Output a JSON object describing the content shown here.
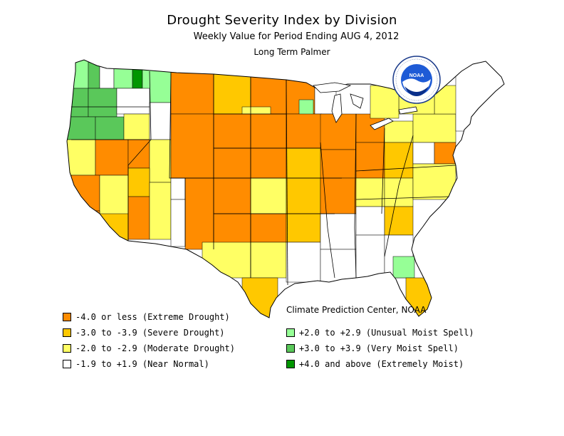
{
  "title": "Drought Severity Index by Division",
  "subtitle": "Weekly Value for Period Ending AUG  4, 2012",
  "subtitle2": "Long Term Palmer",
  "credit": "Climate Prediction Center, NOAA",
  "logo": {
    "name": "NOAA",
    "ring_text_top": "NATIONAL OCEANIC AND ATMOSPHERIC ADMINISTRATION",
    "ring_text_bottom": "U.S. DEPARTMENT OF COMMERCE"
  },
  "colors": {
    "extreme_drought": "#ff8c00",
    "severe_drought": "#ffc800",
    "moderate_drought": "#ffff64",
    "near_normal": "#ffffff",
    "unusual_moist": "#96ff96",
    "very_moist": "#5ac85a",
    "extremely_moist": "#009600",
    "border": "#000000"
  },
  "legend_left": [
    {
      "label": "-4.0 or less (Extreme Drought)",
      "color": "#ff8c00"
    },
    {
      "label": "-3.0 to -3.9 (Severe Drought)",
      "color": "#ffc800"
    },
    {
      "label": "-2.0 to -2.9 (Moderate Drought)",
      "color": "#ffff64"
    },
    {
      "label": "-1.9 to +1.9 (Near Normal)",
      "color": "#ffffff"
    }
  ],
  "legend_right": [
    {
      "label": "+2.0 to +2.9 (Unusual Moist Spell)",
      "color": "#96ff96"
    },
    {
      "label": "+3.0 to +3.9 (Very Moist Spell)",
      "color": "#5ac85a"
    },
    {
      "label": "+4.0 and above (Extremely Moist)",
      "color": "#009600"
    }
  ]
}
